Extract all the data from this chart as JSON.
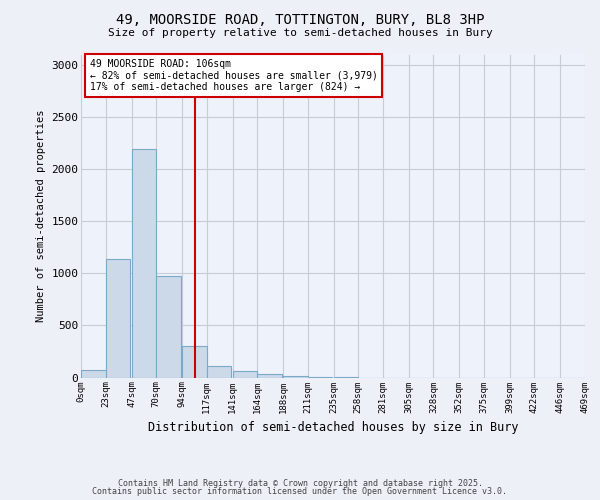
{
  "title_line1": "49, MOORSIDE ROAD, TOTTINGTON, BURY, BL8 3HP",
  "title_line2": "Size of property relative to semi-detached houses in Bury",
  "xlabel": "Distribution of semi-detached houses by size in Bury",
  "ylabel": "Number of semi-detached properties",
  "bin_labels": [
    "0sqm",
    "23sqm",
    "47sqm",
    "70sqm",
    "94sqm",
    "117sqm",
    "141sqm",
    "164sqm",
    "188sqm",
    "211sqm",
    "235sqm",
    "258sqm",
    "281sqm",
    "305sqm",
    "328sqm",
    "352sqm",
    "375sqm",
    "399sqm",
    "422sqm",
    "446sqm",
    "469sqm"
  ],
  "bin_edges": [
    0,
    23,
    47,
    70,
    94,
    117,
    141,
    164,
    188,
    211,
    235,
    258,
    281,
    305,
    328,
    352,
    375,
    399,
    422,
    446,
    469
  ],
  "bar_values": [
    70,
    1140,
    2200,
    980,
    300,
    110,
    60,
    30,
    10,
    5,
    2,
    0,
    0,
    0,
    0,
    0,
    0,
    0,
    0,
    0
  ],
  "bar_color": "#ccd9e8",
  "bar_edge_color": "#7aaac8",
  "property_value": 106,
  "property_line_color": "#cc0000",
  "annotation_text": "49 MOORSIDE ROAD: 106sqm\n← 82% of semi-detached houses are smaller (3,979)\n17% of semi-detached houses are larger (824) →",
  "annotation_box_color": "#ffffff",
  "annotation_box_edge_color": "#cc0000",
  "ylim": [
    0,
    3100
  ],
  "yticks": [
    0,
    500,
    1000,
    1500,
    2000,
    2500,
    3000
  ],
  "footnote_line1": "Contains HM Land Registry data © Crown copyright and database right 2025.",
  "footnote_line2": "Contains public sector information licensed under the Open Government Licence v3.0.",
  "bg_color": "#eef0f8",
  "plot_bg_color": "#eef2fa",
  "grid_color": "#c8ccd8",
  "font_family": "DejaVu Sans Mono"
}
